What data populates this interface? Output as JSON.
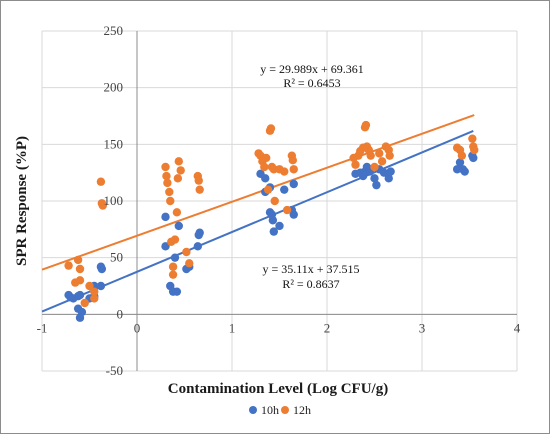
{
  "chart_data": {
    "type": "scatter",
    "xlabel": "Contamination Level (Log CFU/g)",
    "ylabel": "SPR Response (%P)",
    "xlim": [
      -1,
      4
    ],
    "ylim": [
      -50,
      250
    ],
    "xticks": [
      -1,
      0,
      1,
      2,
      3,
      4
    ],
    "yticks": [
      -50,
      0,
      50,
      100,
      150,
      200,
      250
    ],
    "grid": true,
    "legend_position": "bottom",
    "series": [
      {
        "name": "10h",
        "color": "#4472C4",
        "trendline": {
          "slope": 35.11,
          "intercept": 37.515,
          "equation": "y = 35.11x + 37.515",
          "r2": "R² = 0.8637"
        },
        "points": [
          [
            -0.72,
            17
          ],
          [
            -0.7,
            15
          ],
          [
            -0.67,
            14
          ],
          [
            -0.62,
            5
          ],
          [
            -0.62,
            16
          ],
          [
            -0.6,
            17
          ],
          [
            -0.6,
            -3
          ],
          [
            -0.58,
            2
          ],
          [
            -0.5,
            14
          ],
          [
            -0.45,
            25
          ],
          [
            -0.45,
            16
          ],
          [
            -0.38,
            42
          ],
          [
            -0.38,
            25
          ],
          [
            -0.37,
            40
          ],
          [
            0.3,
            86
          ],
          [
            0.3,
            60
          ],
          [
            0.35,
            25
          ],
          [
            0.38,
            20
          ],
          [
            0.42,
            20
          ],
          [
            0.4,
            50
          ],
          [
            0.44,
            78
          ],
          [
            0.52,
            40
          ],
          [
            0.55,
            42
          ],
          [
            0.64,
            60
          ],
          [
            0.65,
            70
          ],
          [
            0.66,
            72
          ],
          [
            1.3,
            124
          ],
          [
            1.35,
            120
          ],
          [
            1.35,
            108
          ],
          [
            1.4,
            90
          ],
          [
            1.4,
            112
          ],
          [
            1.42,
            88
          ],
          [
            1.43,
            83
          ],
          [
            1.44,
            73
          ],
          [
            1.5,
            78
          ],
          [
            1.55,
            110
          ],
          [
            1.63,
            92
          ],
          [
            1.65,
            88
          ],
          [
            1.65,
            115
          ],
          [
            2.3,
            124
          ],
          [
            2.35,
            125
          ],
          [
            2.38,
            122
          ],
          [
            2.4,
            126
          ],
          [
            2.42,
            130
          ],
          [
            2.45,
            126
          ],
          [
            2.5,
            120
          ],
          [
            2.52,
            114
          ],
          [
            2.55,
            128
          ],
          [
            2.6,
            125
          ],
          [
            2.65,
            120
          ],
          [
            2.67,
            126
          ],
          [
            3.37,
            128
          ],
          [
            3.4,
            134
          ],
          [
            3.43,
            128
          ],
          [
            3.45,
            126
          ],
          [
            3.53,
            140
          ],
          [
            3.54,
            138
          ]
        ]
      },
      {
        "name": "12h",
        "color": "#ED7D31",
        "trendline": {
          "slope": 29.989,
          "intercept": 69.361,
          "equation": "y = 29.989x + 69.361",
          "r2": "R² = 0.6453"
        },
        "points": [
          [
            -0.72,
            43
          ],
          [
            -0.65,
            28
          ],
          [
            -0.62,
            48
          ],
          [
            -0.6,
            40
          ],
          [
            -0.6,
            30
          ],
          [
            -0.55,
            10
          ],
          [
            -0.5,
            25
          ],
          [
            -0.45,
            14
          ],
          [
            -0.45,
            20
          ],
          [
            -0.38,
            117
          ],
          [
            -0.37,
            98
          ],
          [
            -0.36,
            96
          ],
          [
            0.3,
            130
          ],
          [
            0.31,
            122
          ],
          [
            0.32,
            116
          ],
          [
            0.34,
            108
          ],
          [
            0.35,
            100
          ],
          [
            0.36,
            64
          ],
          [
            0.38,
            42
          ],
          [
            0.38,
            35
          ],
          [
            0.4,
            66
          ],
          [
            0.42,
            90
          ],
          [
            0.43,
            120
          ],
          [
            0.44,
            135
          ],
          [
            0.46,
            127
          ],
          [
            0.52,
            55
          ],
          [
            0.55,
            45
          ],
          [
            0.64,
            122
          ],
          [
            0.65,
            118
          ],
          [
            0.66,
            110
          ],
          [
            1.28,
            142
          ],
          [
            1.3,
            140
          ],
          [
            1.32,
            135
          ],
          [
            1.34,
            130
          ],
          [
            1.36,
            138
          ],
          [
            1.38,
            110
          ],
          [
            1.4,
            162
          ],
          [
            1.41,
            164
          ],
          [
            1.42,
            130
          ],
          [
            1.44,
            128
          ],
          [
            1.45,
            100
          ],
          [
            1.5,
            128
          ],
          [
            1.55,
            126
          ],
          [
            1.58,
            92
          ],
          [
            1.63,
            140
          ],
          [
            1.64,
            136
          ],
          [
            1.65,
            128
          ],
          [
            2.28,
            138
          ],
          [
            2.3,
            132
          ],
          [
            2.33,
            140
          ],
          [
            2.35,
            144
          ],
          [
            2.38,
            147
          ],
          [
            2.4,
            165
          ],
          [
            2.41,
            167
          ],
          [
            2.42,
            148
          ],
          [
            2.44,
            145
          ],
          [
            2.46,
            140
          ],
          [
            2.5,
            130
          ],
          [
            2.55,
            142
          ],
          [
            2.58,
            135
          ],
          [
            2.62,
            148
          ],
          [
            2.65,
            145
          ],
          [
            2.66,
            140
          ],
          [
            3.37,
            147
          ],
          [
            3.4,
            145
          ],
          [
            3.42,
            140
          ],
          [
            3.53,
            155
          ],
          [
            3.54,
            148
          ],
          [
            3.55,
            145
          ]
        ]
      }
    ]
  }
}
